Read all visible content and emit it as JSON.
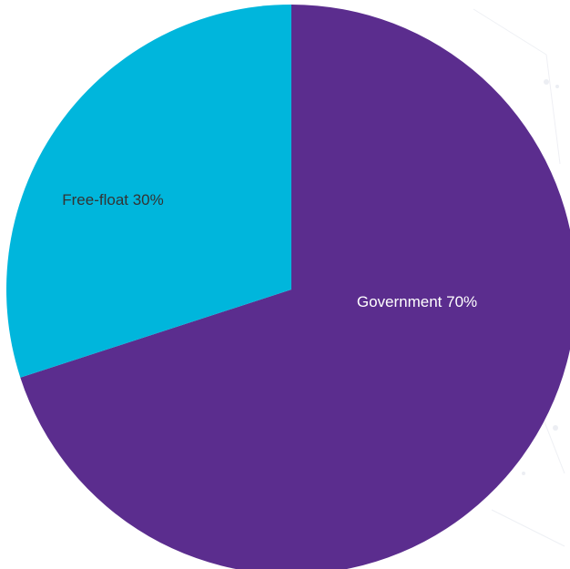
{
  "chart_data": {
    "type": "pie",
    "start_angle_deg": 0,
    "direction": "clockwise",
    "legend": "none",
    "slices": [
      {
        "label": "Government 70%",
        "value": 70,
        "color": "#5b2d8e",
        "label_color": "#ffffff"
      },
      {
        "label": "Free-float 30%",
        "value": 30,
        "color": "#00b6dc",
        "label_color": "#333333"
      }
    ]
  }
}
